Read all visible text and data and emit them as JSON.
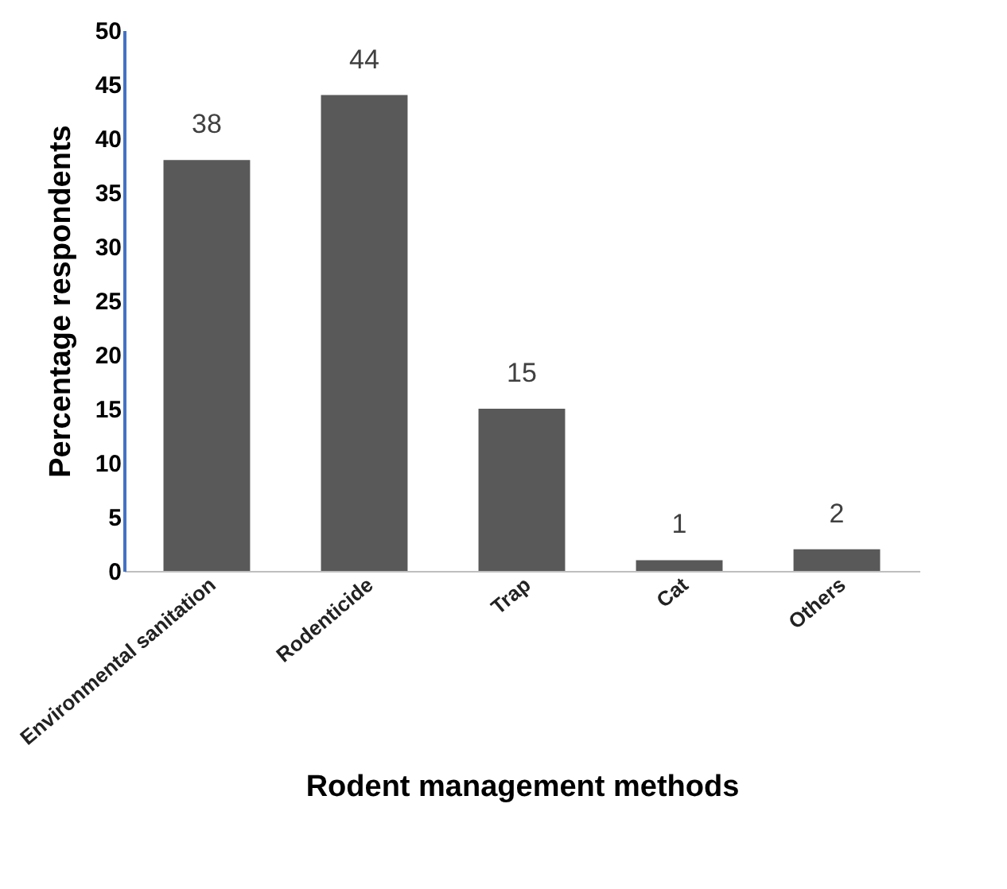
{
  "chart_data": {
    "type": "bar",
    "xlabel": "Rodent management methods",
    "ylabel": "Percentage respondents",
    "categories": [
      "Environmental sanitation",
      "Rodenticide",
      "Trap",
      "Cat",
      "Others"
    ],
    "values": [
      38,
      44,
      15,
      1,
      2
    ],
    "color": "#595959",
    "ylim": [
      0,
      50
    ],
    "yticks": [
      0,
      5,
      10,
      15,
      20,
      25,
      30,
      35,
      40,
      45,
      50
    ],
    "grid": false,
    "data_labels": true
  }
}
